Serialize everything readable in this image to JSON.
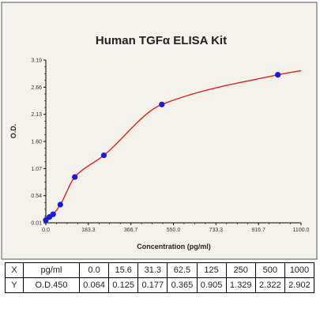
{
  "chart_data": {
    "type": "scatter",
    "title": "Human TGFα ELISA Kit",
    "xlabel": "Concentration (pg/ml)",
    "ylabel": "O.D.",
    "xlim": [
      0.0,
      1100.0
    ],
    "ylim": [
      0.01,
      3.19
    ],
    "x_ticks": [
      "0.0",
      "183.3",
      "366.7",
      "550.0",
      "733.3",
      "916.7",
      "1100.0"
    ],
    "y_ticks": [
      "0.01",
      "0.54",
      "1.07",
      "1.60",
      "2.13",
      "2.66",
      "3.19"
    ],
    "points": {
      "x": [
        0.0,
        15.6,
        31.3,
        62.5,
        125,
        250,
        500,
        1000
      ],
      "y": [
        0.064,
        0.125,
        0.177,
        0.365,
        0.905,
        1.329,
        2.322,
        2.902
      ]
    },
    "curve": {
      "color": "#e02020"
    },
    "point_color": "#1a1adb",
    "grid": false
  },
  "table": {
    "x_row": {
      "head": "X",
      "unit": "pg/ml",
      "values": [
        "0.0",
        "15.6",
        "31.3",
        "62.5",
        "125",
        "250",
        "500",
        "1000"
      ]
    },
    "y_row": {
      "head": "Y",
      "unit": "O.D.450",
      "values": [
        "0.064",
        "0.125",
        "0.177",
        "0.365",
        "0.905",
        "1.329",
        "2.322",
        "2.902"
      ]
    }
  }
}
